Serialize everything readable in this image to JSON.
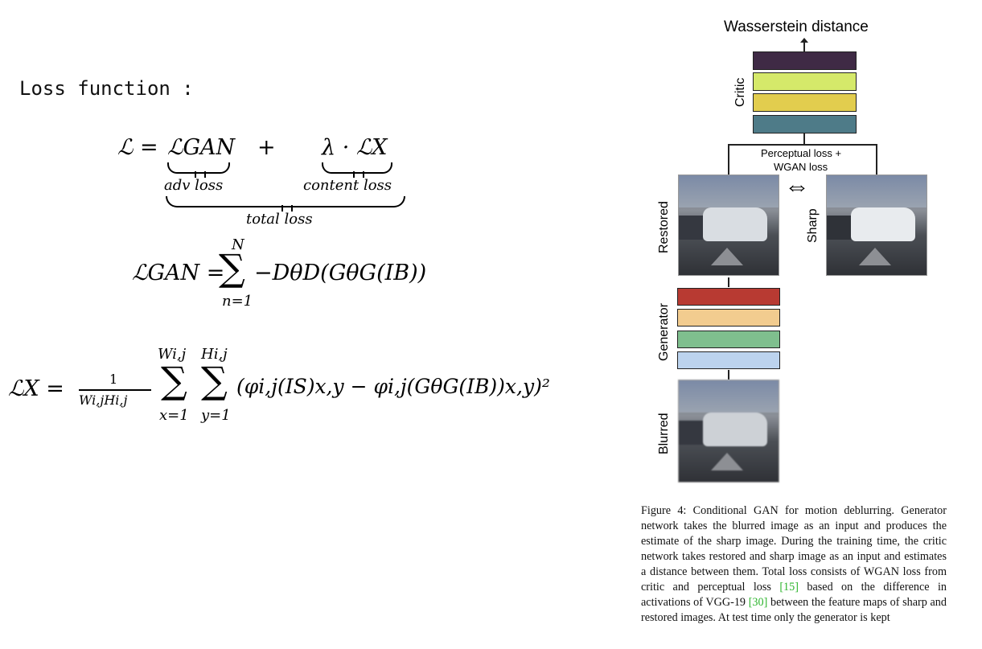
{
  "heading": "Loss function :",
  "eq1": {
    "lhs": "ℒ =",
    "term1": "ℒGAN",
    "plus": "+",
    "term2": "λ · ℒX",
    "label1": "adv loss",
    "label2": "content loss",
    "label_total": "total loss"
  },
  "eq2": {
    "lhs": "ℒGAN =",
    "sum_top": "N",
    "sum_bottom": "n=1",
    "body": "−DθD(GθG(IB))"
  },
  "eq3": {
    "lhs": "ℒX =",
    "frac_num": "1",
    "frac_den": "Wi,jHi,j",
    "sum1_top": "Wi,j",
    "sum1_bottom": "x=1",
    "sum2_top": "Hi,j",
    "sum2_bottom": "y=1",
    "body": "(φi,j(IS)x,y − φi,j(GθG(IB))x,y)²"
  },
  "figure": {
    "top_label": "Wasserstein distance",
    "critic_label": "Critic",
    "loss_label_line1": "Perceptual loss +",
    "loss_label_line2": "WGAN loss",
    "restored_label": "Restored",
    "sharp_label": "Sharp",
    "generator_label": "Generator",
    "blurred_label": "Blurred",
    "critic_colors": [
      "#3f2a45",
      "#d5e96a",
      "#e2cd4e",
      "#4e7b88"
    ],
    "generator_colors": [
      "#b83a32",
      "#f2cc8f",
      "#7fbf8e",
      "#bcd3ee"
    ]
  },
  "caption": {
    "text_a": "Figure 4: Conditional GAN for motion deblurring. Generator network takes the blurred image as an input and produces the estimate of the sharp image. During the training time, the critic network takes restored and sharp image as an input and estimates a distance between them. Total loss consists of WGAN loss from critic and perceptual loss ",
    "cite1": "[15]",
    "text_b": " based on the difference in activations of VGG-19 ",
    "cite2": "[30]",
    "text_c": " between the feature maps of sharp and restored images. At test time only the generator is kept"
  }
}
